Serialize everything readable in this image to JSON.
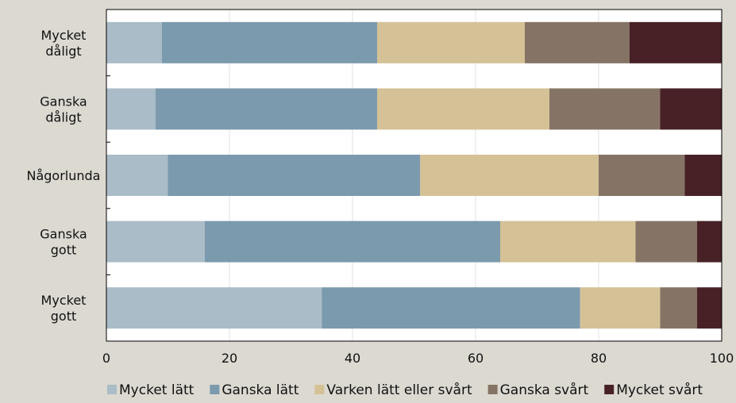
{
  "chart_data": {
    "type": "bar",
    "orientation": "horizontal",
    "stacked": true,
    "categories": [
      [
        "Mycket",
        "dåligt"
      ],
      [
        "Ganska",
        "dåligt"
      ],
      [
        "Någorlunda"
      ],
      [
        "Ganska",
        "gott"
      ],
      [
        "Mycket",
        "gott"
      ]
    ],
    "series": [
      {
        "name": "Mycket lätt",
        "color": "#a9bcc7",
        "values": [
          9,
          8,
          10,
          16,
          35
        ]
      },
      {
        "name": "Ganska lätt",
        "color": "#7b9aad",
        "values": [
          35,
          36,
          41,
          48,
          42
        ]
      },
      {
        "name": "Varken lätt eller svårt",
        "color": "#d4c196",
        "values": [
          24,
          28,
          29,
          22,
          13
        ]
      },
      {
        "name": "Ganska svårt",
        "color": "#857465",
        "values": [
          17,
          18,
          14,
          10,
          6
        ]
      },
      {
        "name": "Mycket svårt",
        "color": "#472126",
        "values": [
          15,
          10,
          6,
          4,
          4
        ]
      }
    ],
    "xlim": [
      0,
      100
    ],
    "xticks": [
      "0",
      "20",
      "40",
      "60",
      "80",
      "100"
    ],
    "grid": true,
    "legend_position": "bottom",
    "title": "",
    "xlabel": "",
    "ylabel": ""
  }
}
